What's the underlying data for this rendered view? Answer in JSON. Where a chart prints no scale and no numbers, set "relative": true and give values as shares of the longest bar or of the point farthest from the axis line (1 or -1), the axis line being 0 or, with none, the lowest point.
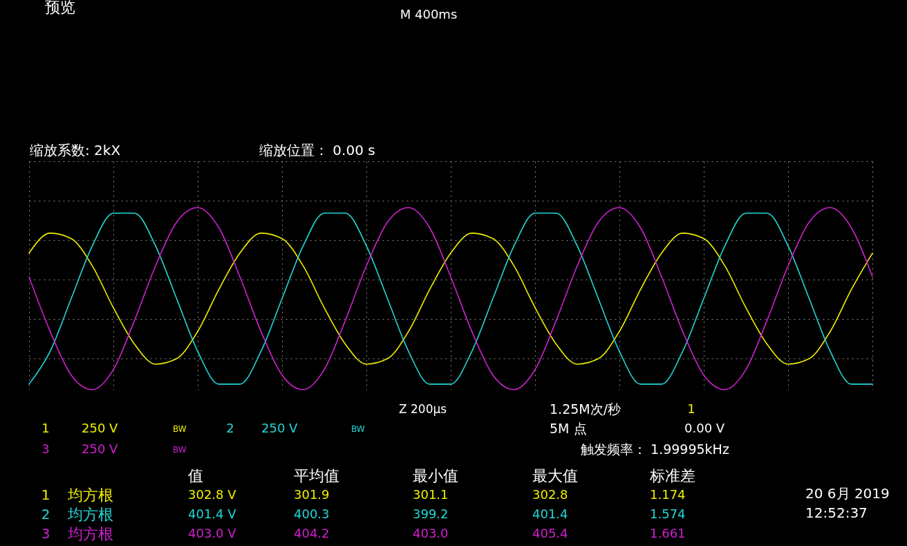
{
  "chart_data": {
    "type": "line",
    "relative": true,
    "grid": true,
    "line_style": "solid",
    "marker": "none",
    "categories": [
      null,
      null,
      null,
      null,
      null,
      null,
      null,
      null,
      null,
      null,
      null,
      null,
      null,
      null,
      null,
      null,
      null,
      null,
      null,
      null,
      null,
      null,
      null,
      null,
      null,
      null,
      null,
      null,
      null,
      null,
      null,
      null,
      null,
      null,
      null,
      null,
      null,
      null,
      null,
      null,
      null
    ],
    "series": [
      {
        "color": "#f0f000",
        "values": [
          0.75,
          0.86,
          0.83,
          0.68,
          0.45,
          0.25,
          0.14,
          0.17,
          0.32,
          0.55,
          0.75,
          0.86,
          0.83,
          0.68,
          0.45,
          0.25,
          0.14,
          0.17,
          0.32,
          0.55,
          0.75,
          0.86,
          0.83,
          0.68,
          0.45,
          0.25,
          0.14,
          0.17,
          0.32,
          0.55,
          0.75,
          0.86,
          0.83,
          0.68,
          0.45,
          0.25,
          0.14,
          0.17,
          0.32,
          0.55,
          0.75
        ]
      },
      {
        "color": "#22d8d8",
        "values": [
          0.03,
          0.21,
          0.5,
          0.79,
          0.97,
          0.97,
          0.79,
          0.5,
          0.21,
          0.03,
          0.03,
          0.21,
          0.5,
          0.79,
          0.97,
          0.97,
          0.79,
          0.5,
          0.21,
          0.03,
          0.03,
          0.21,
          0.5,
          0.79,
          0.97,
          0.97,
          0.79,
          0.5,
          0.21,
          0.03,
          0.03,
          0.21,
          0.5,
          0.79,
          0.97,
          0.97,
          0.79,
          0.5,
          0.21,
          0.03,
          0.03
        ]
      },
      {
        "color": "#d020d0",
        "values": [
          0.62,
          0.32,
          0.08,
          0,
          0.11,
          0.38,
          0.68,
          0.92,
          1,
          0.89,
          0.62,
          0.32,
          0.08,
          0,
          0.11,
          0.38,
          0.68,
          0.92,
          1,
          0.89,
          0.62,
          0.32,
          0.08,
          0,
          0.11,
          0.38,
          0.68,
          0.92,
          1,
          0.89,
          0.62,
          0.32,
          0.08,
          0,
          0.11,
          0.38,
          0.68,
          0.92,
          1,
          0.89,
          0.62
        ]
      }
    ],
    "annotations": [
      "预览",
      "M 400ms",
      "缩放系数: 2kX",
      "缩放位置： 0.00 s",
      "1",
      "250 V",
      "BW",
      "2",
      "250 V",
      "BW",
      "3",
      "250 V",
      "BW",
      "Z 200µs",
      "1.25M次/秒",
      "1",
      "5M 点",
      "0.00 V",
      "触发频率： 1.99995kHz",
      "值",
      "平均值",
      "最小值",
      "最大值",
      "标准差",
      "1",
      "均方根",
      "302.8 V",
      "301.9",
      "301.1",
      "302.8",
      "1.174",
      "2",
      "均方根",
      "401.4 V",
      "400.3",
      "399.2",
      "401.4",
      "1.574",
      "3",
      "均方根",
      "403.0 V",
      "404.2",
      "403.0",
      "405.4",
      "1.661",
      "20 6月 2019",
      "12:52:37"
    ]
  }
}
